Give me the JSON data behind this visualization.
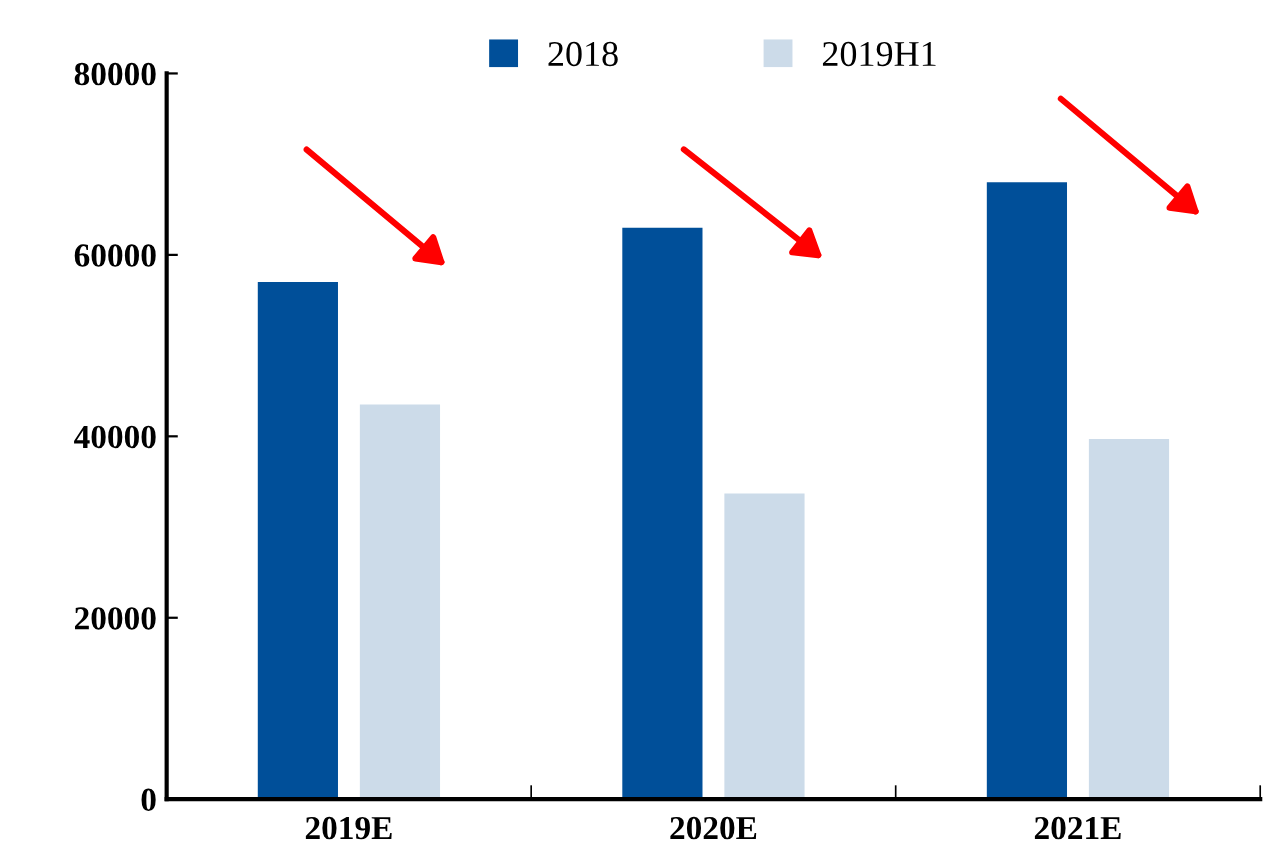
{
  "chart_data": {
    "type": "bar",
    "categories": [
      "2019E",
      "2020E",
      "2021E"
    ],
    "series": [
      {
        "name": "2018",
        "color": "#004f99",
        "values": [
          57000,
          63000,
          68000
        ]
      },
      {
        "name": "2019H1",
        "color": "#ccdbe9",
        "values": [
          43500,
          33700,
          39700
        ]
      }
    ],
    "ylim": [
      0,
      80000
    ],
    "yticks": [
      0,
      20000,
      40000,
      60000,
      80000
    ],
    "grid": false,
    "legend": "top"
  }
}
